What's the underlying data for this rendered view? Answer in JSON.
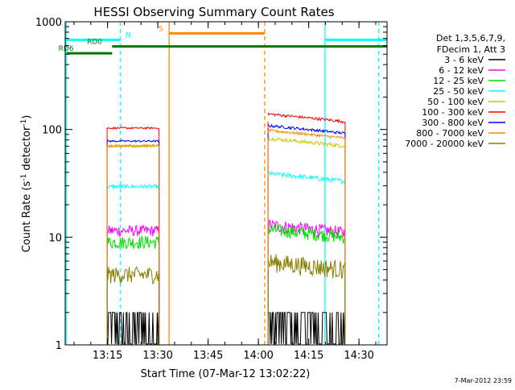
{
  "chart_data": {
    "type": "line",
    "title": "HESSI Observing Summary Count Rates",
    "xlabel": "Start Time (07-Mar-12 13:02:22)",
    "ylabel_main": "Count Rate (s",
    "ylabel_sup1": "-1",
    "ylabel_mid": " detector",
    "ylabel_sup2": "-1",
    "ylabel_end": ")",
    "y_scale": "log",
    "ylim": [
      1,
      1000
    ],
    "xlim_minutes": [
      0,
      96
    ],
    "x_ticks": [
      {
        "t": 12.63,
        "label": "13:15"
      },
      {
        "t": 27.63,
        "label": "13:30"
      },
      {
        "t": 42.63,
        "label": "13:45"
      },
      {
        "t": 57.63,
        "label": "14:00"
      },
      {
        "t": 72.63,
        "label": "14:15"
      },
      {
        "t": 87.63,
        "label": "14:30"
      }
    ],
    "y_ticks": [
      {
        "v": 1,
        "label": "1"
      },
      {
        "v": 10,
        "label": "10"
      },
      {
        "v": 100,
        "label": "100"
      },
      {
        "v": 1000,
        "label": "1000"
      }
    ],
    "legend_header": [
      "Det 1,3,5,6,7,9,",
      "FDecim 1, Att 3"
    ],
    "legend_placement": "right",
    "series": [
      {
        "name": "3 - 6 keV",
        "color": "#000000",
        "segments": [
          {
            "t0": 12.5,
            "t1": 28.0,
            "level": 1.5,
            "noise": 0.35
          },
          {
            "t0": 60.5,
            "t1": 83.5,
            "level": 1.5,
            "noise": 0.35
          }
        ]
      },
      {
        "name": "6 - 12 keV",
        "color": "#ff00ff",
        "segments": [
          {
            "t0": 12.5,
            "t1": 28.0,
            "level": 11.5,
            "noise": 0.12
          },
          {
            "t0": 60.5,
            "t1": 83.5,
            "level": 11.0,
            "noise": 0.14
          }
        ]
      },
      {
        "name": "12 - 25 keV",
        "color": "#00dd00",
        "segments": [
          {
            "t0": 12.5,
            "t1": 28.0,
            "level": 9.0,
            "noise": 0.14
          },
          {
            "t0": 60.5,
            "t1": 83.5,
            "level": 10.0,
            "noise": 0.14
          }
        ]
      },
      {
        "name": "25 - 50 keV",
        "color": "#00ffff",
        "segments": [
          {
            "t0": 12.5,
            "t1": 28.0,
            "level": 29.5,
            "noise": 0.04
          },
          {
            "t0": 60.5,
            "t1": 83.5,
            "level": 33.0,
            "noise": 0.05
          }
        ]
      },
      {
        "name": "50 - 100 keV",
        "color": "#c8c800",
        "segments": [
          {
            "t0": 12.5,
            "t1": 28.0,
            "level": 70.0,
            "noise": 0.03
          },
          {
            "t0": 60.5,
            "t1": 83.5,
            "level": 70.0,
            "noise": 0.04
          }
        ]
      },
      {
        "name": "100 - 300 keV",
        "color": "#ff0000",
        "segments": [
          {
            "t0": 12.5,
            "t1": 28.0,
            "level": 103.0,
            "noise": 0.02
          },
          {
            "t0": 60.5,
            "t1": 83.5,
            "level": 118.0,
            "noise": 0.03
          }
        ]
      },
      {
        "name": "300 - 800 keV",
        "color": "#0000ff",
        "segments": [
          {
            "t0": 12.5,
            "t1": 28.0,
            "level": 78.0,
            "noise": 0.02
          },
          {
            "t0": 60.5,
            "t1": 83.5,
            "level": 92.0,
            "noise": 0.03
          }
        ]
      },
      {
        "name": "800 - 7000 keV",
        "color": "#ff8800",
        "segments": [
          {
            "t0": 12.5,
            "t1": 28.0,
            "level": 71.0,
            "noise": 0.02
          },
          {
            "t0": 60.5,
            "t1": 83.5,
            "level": 83.0,
            "noise": 0.03
          }
        ]
      },
      {
        "name": "7000 - 20000 keV",
        "color": "#8b7d00",
        "segments": [
          {
            "t0": 12.5,
            "t1": 28.0,
            "level": 4.5,
            "noise": 0.18
          },
          {
            "t0": 60.5,
            "t1": 83.5,
            "level": 5.0,
            "noise": 0.2
          }
        ]
      }
    ],
    "flag_bars": [
      {
        "label": "N",
        "color": "#00ffff",
        "label_color": "#00ffff",
        "value": 680,
        "ranges": [
          [
            0,
            16.5
          ],
          [
            77.5,
            96
          ]
        ],
        "width": 3,
        "label_at": 18.0
      },
      {
        "label": "S",
        "color": "#ff8800",
        "label_color": "#ff8800",
        "value": 780,
        "ranges": [
          [
            31.0,
            59.5
          ]
        ],
        "width": 3,
        "label_at": 27.8
      },
      {
        "label": "RD0",
        "color": "#007700",
        "label_color": "#007700",
        "value": 590,
        "ranges": [
          [
            14.0,
            96
          ]
        ],
        "width": 3,
        "label_at": 6.5
      },
      {
        "label": "RD6",
        "color": "#007700",
        "label_color": "#007700",
        "value": 510,
        "ranges": [
          [
            0.5,
            14.0
          ]
        ],
        "width": 3,
        "label_at": -2.0
      }
    ],
    "vlines": [
      {
        "t": 0.3,
        "color": "#00ffff",
        "dash": "none"
      },
      {
        "t": 16.5,
        "color": "#00ffff",
        "dash": "5,4"
      },
      {
        "t": 31.0,
        "color": "#ff8800",
        "dash": "none"
      },
      {
        "t": 59.5,
        "color": "#ff8800",
        "dash": "5,4"
      },
      {
        "t": 77.5,
        "color": "#00ffff",
        "dash": "none"
      },
      {
        "t": 93.5,
        "color": "#00ffff",
        "dash": "5,4"
      }
    ],
    "timestamp": "7-Mar-2012 23:59"
  }
}
